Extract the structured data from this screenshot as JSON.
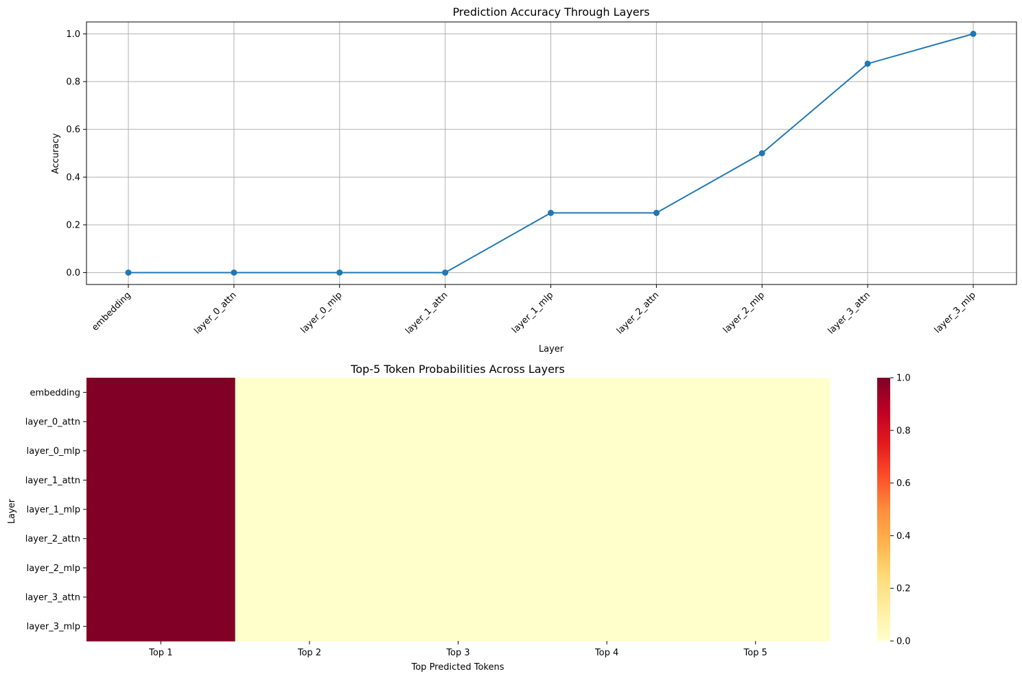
{
  "chart_data": [
    {
      "type": "line",
      "title": "Prediction Accuracy Through Layers",
      "xlabel": "Layer",
      "ylabel": "Accuracy",
      "categories": [
        "embedding",
        "layer_0_attn",
        "layer_0_mlp",
        "layer_1_attn",
        "layer_1_mlp",
        "layer_2_attn",
        "layer_2_mlp",
        "layer_3_attn",
        "layer_3_mlp"
      ],
      "values": [
        0.0,
        0.0,
        0.0,
        0.0,
        0.25,
        0.25,
        0.5,
        0.875,
        1.0
      ],
      "yticks": [
        "0.0",
        "0.2",
        "0.4",
        "0.6",
        "0.8",
        "1.0"
      ],
      "ylim": [
        -0.05,
        1.05
      ],
      "grid": true,
      "line_color": "#1f77b4"
    },
    {
      "type": "heatmap",
      "title": "Top-5 Token Probabilities Across Layers",
      "xlabel": "Top Predicted Tokens",
      "ylabel": "Layer",
      "x_categories": [
        "Top 1",
        "Top 2",
        "Top 3",
        "Top 4",
        "Top 5"
      ],
      "y_categories": [
        "embedding",
        "layer_0_attn",
        "layer_0_mlp",
        "layer_1_attn",
        "layer_1_mlp",
        "layer_2_attn",
        "layer_2_mlp",
        "layer_3_attn",
        "layer_3_mlp"
      ],
      "values": [
        [
          1.0,
          0.0,
          0.0,
          0.0,
          0.0
        ],
        [
          1.0,
          0.0,
          0.0,
          0.0,
          0.0
        ],
        [
          1.0,
          0.0,
          0.0,
          0.0,
          0.0
        ],
        [
          1.0,
          0.0,
          0.0,
          0.0,
          0.0
        ],
        [
          1.0,
          0.0,
          0.0,
          0.0,
          0.0
        ],
        [
          1.0,
          0.0,
          0.0,
          0.0,
          0.0
        ],
        [
          1.0,
          0.0,
          0.0,
          0.0,
          0.0
        ],
        [
          1.0,
          0.0,
          0.0,
          0.0,
          0.0
        ],
        [
          1.0,
          0.0,
          0.0,
          0.0,
          0.0
        ]
      ],
      "colorscale": "YlOrRd",
      "vmin": 0.0,
      "vmax": 1.0,
      "colorbar_ticks": [
        "0.0",
        "0.2",
        "0.4",
        "0.6",
        "0.8",
        "1.0"
      ]
    }
  ]
}
